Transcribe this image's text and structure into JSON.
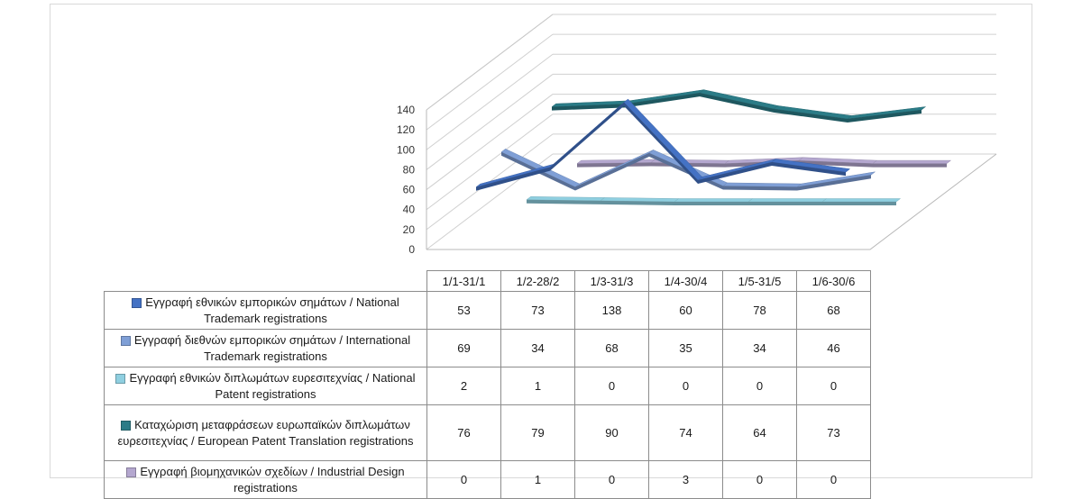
{
  "chart_data": {
    "type": "line",
    "categories": [
      "1/1-31/1",
      "1/2-28/2",
      "1/3-31/3",
      "1/4-30/4",
      "1/5-31/5",
      "1/6-30/6"
    ],
    "yticks": [
      "0",
      "20",
      "40",
      "60",
      "80",
      "100",
      "120",
      "140"
    ],
    "ylim": [
      0,
      140
    ],
    "grid": true,
    "legend": "data-table",
    "series": [
      {
        "name": "Εγγραφή εθνικών εμπορικών σημάτων / National Trademark registrations",
        "values": [
          53,
          73,
          138,
          60,
          78,
          68
        ],
        "color": "#4472c4"
      },
      {
        "name": "Εγγραφή διεθνών εμπορικών σημάτων / International Trademark registrations",
        "values": [
          69,
          34,
          68,
          35,
          34,
          46
        ],
        "color": "#7f9fd6"
      },
      {
        "name": "Εγγραφή εθνικών διπλωμάτων ευρεσιτεχνίας / National Patent registrations",
        "values": [
          2,
          1,
          0,
          0,
          0,
          0
        ],
        "color": "#8fcfe0"
      },
      {
        "name": "Καταχώριση μεταφράσεων ευρωπαϊκών διπλωμάτων ευρεσιτεχνίας / European Patent Translation registrations",
        "values": [
          76,
          79,
          90,
          74,
          64,
          73
        ],
        "color": "#2b7c87"
      },
      {
        "name": "Εγγραφή βιομηχανικών σχεδίων / Industrial Design registrations",
        "values": [
          0,
          1,
          0,
          3,
          0,
          0
        ],
        "color": "#b4a7cf"
      }
    ]
  }
}
